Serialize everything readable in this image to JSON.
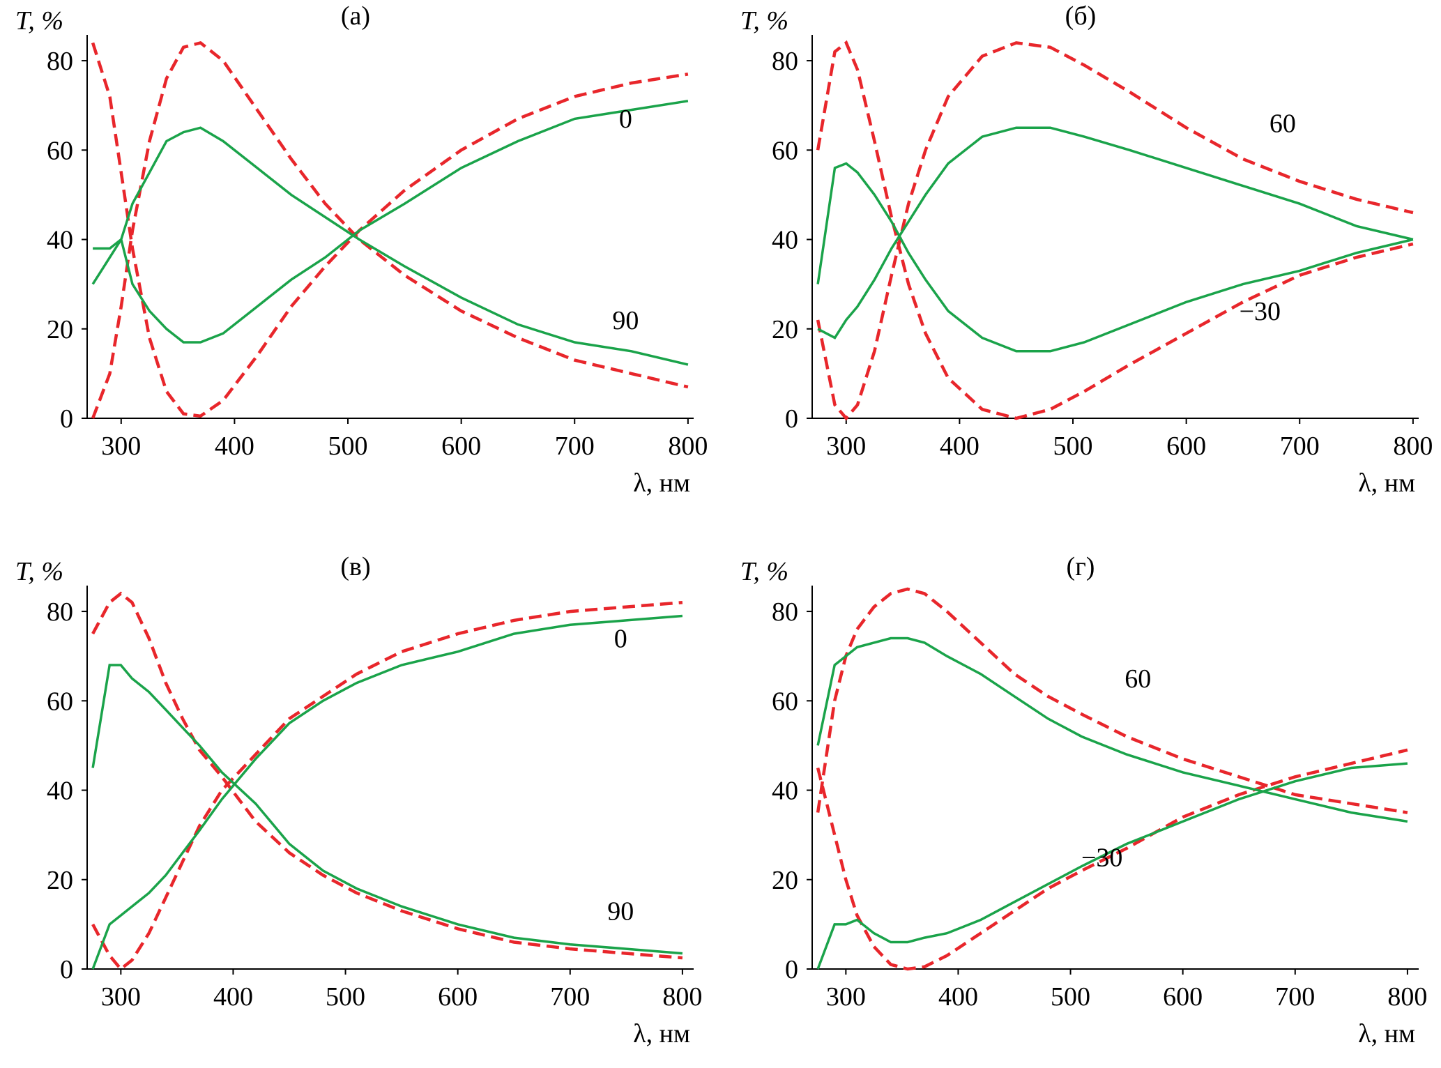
{
  "chart_data": [
    {
      "type": "line",
      "title": "(а)",
      "ylabel": "T, %",
      "xlabel": "λ, нм",
      "xlim": [
        270,
        805
      ],
      "ylim": [
        0,
        85
      ],
      "xticks": [
        300,
        400,
        500,
        600,
        700,
        800
      ],
      "yticks": [
        0,
        20,
        40,
        60,
        80
      ],
      "x": [
        275,
        290,
        300,
        310,
        325,
        340,
        355,
        370,
        390,
        420,
        450,
        480,
        510,
        550,
        600,
        650,
        700,
        750,
        800
      ],
      "series": [
        {
          "color": "#e8262b",
          "dash": true,
          "values": [
            84,
            72,
            55,
            38,
            18,
            6,
            1,
            0.5,
            4,
            14,
            25,
            34,
            42,
            51,
            60,
            67,
            72,
            75,
            77
          ]
        },
        {
          "color": "#e8262b",
          "dash": true,
          "values": [
            0,
            10,
            25,
            42,
            62,
            76,
            83,
            84,
            80,
            69,
            58,
            48,
            40,
            32,
            24,
            18,
            13,
            10,
            7
          ]
        },
        {
          "color": "#1aa34a",
          "values": [
            30,
            36,
            40,
            30,
            24,
            20,
            17,
            17,
            19,
            25,
            31,
            36,
            42,
            48,
            56,
            62,
            67,
            69,
            71
          ]
        },
        {
          "color": "#1aa34a",
          "values": [
            38,
            38,
            40,
            48,
            55,
            62,
            64,
            65,
            62,
            56,
            50,
            45,
            40,
            34,
            27,
            21,
            17,
            15,
            12
          ]
        }
      ],
      "annotations": [
        {
          "text": "0",
          "x": 745,
          "y": 65
        },
        {
          "text": "90",
          "x": 745,
          "y": 20
        }
      ]
    },
    {
      "type": "line",
      "title": "(б)",
      "ylabel": "T, %",
      "xlabel": "λ, нм",
      "xlim": [
        270,
        805
      ],
      "ylim": [
        0,
        85
      ],
      "xticks": [
        300,
        400,
        500,
        600,
        700,
        800
      ],
      "yticks": [
        0,
        20,
        40,
        60,
        80
      ],
      "x": [
        275,
        290,
        300,
        310,
        325,
        340,
        355,
        370,
        390,
        420,
        450,
        480,
        510,
        550,
        600,
        650,
        700,
        750,
        800
      ],
      "series": [
        {
          "color": "#e8262b",
          "dash": true,
          "values": [
            60,
            82,
            84,
            78,
            62,
            45,
            30,
            19,
            9,
            2,
            0,
            2,
            6,
            12,
            19,
            26,
            32,
            36,
            39
          ]
        },
        {
          "color": "#e8262b",
          "dash": true,
          "values": [
            22,
            3,
            0,
            3,
            15,
            32,
            48,
            60,
            72,
            81,
            84,
            83,
            79,
            73,
            65,
            58,
            53,
            49,
            46
          ]
        },
        {
          "color": "#1aa34a",
          "values": [
            30,
            56,
            57,
            55,
            50,
            44,
            37,
            31,
            24,
            18,
            15,
            15,
            17,
            21,
            26,
            30,
            33,
            37,
            40
          ]
        },
        {
          "color": "#1aa34a",
          "values": [
            20,
            18,
            22,
            25,
            31,
            38,
            44,
            50,
            57,
            63,
            65,
            65,
            63,
            60,
            56,
            52,
            48,
            43,
            40
          ]
        }
      ],
      "annotations": [
        {
          "text": "60",
          "x": 685,
          "y": 64
        },
        {
          "text": "−30",
          "x": 665,
          "y": 22
        }
      ]
    },
    {
      "type": "line",
      "title": "(в)",
      "ylabel": "T, %",
      "xlabel": "λ, нм",
      "xlim": [
        270,
        810
      ],
      "ylim": [
        0,
        85
      ],
      "xticks": [
        300,
        400,
        500,
        600,
        700,
        800
      ],
      "yticks": [
        0,
        20,
        40,
        60,
        80
      ],
      "x": [
        275,
        290,
        300,
        310,
        325,
        340,
        355,
        370,
        390,
        420,
        450,
        480,
        510,
        550,
        600,
        650,
        700,
        750,
        800
      ],
      "series": [
        {
          "color": "#e8262b",
          "dash": true,
          "values": [
            75,
            82,
            84,
            82,
            74,
            64,
            56,
            49,
            43,
            33,
            26,
            21,
            17,
            13,
            9,
            6,
            4.5,
            3.5,
            2.5
          ]
        },
        {
          "color": "#e8262b",
          "dash": true,
          "values": [
            10,
            3,
            0,
            2,
            8,
            16,
            24,
            32,
            40,
            48,
            56,
            61,
            66,
            71,
            75,
            78,
            80,
            81,
            82
          ]
        },
        {
          "color": "#1aa34a",
          "values": [
            45,
            68,
            68,
            65,
            62,
            58,
            54,
            50,
            44,
            37,
            28,
            22,
            18,
            14,
            10,
            7,
            5.5,
            4.5,
            3.5
          ]
        },
        {
          "color": "#1aa34a",
          "values": [
            0,
            10,
            12,
            14,
            17,
            21,
            26,
            31,
            38,
            47,
            55,
            60,
            64,
            68,
            71,
            75,
            77,
            78,
            79
          ]
        }
      ],
      "annotations": [
        {
          "text": "0",
          "x": 745,
          "y": 72
        },
        {
          "text": "90",
          "x": 745,
          "y": 11
        }
      ]
    },
    {
      "type": "line",
      "title": "(г)",
      "ylabel": "T, %",
      "xlabel": "λ, нм",
      "xlim": [
        270,
        810
      ],
      "ylim": [
        0,
        85
      ],
      "xticks": [
        300,
        400,
        500,
        600,
        700,
        800
      ],
      "yticks": [
        0,
        20,
        40,
        60,
        80
      ],
      "x": [
        275,
        290,
        300,
        310,
        325,
        340,
        355,
        370,
        390,
        420,
        450,
        480,
        510,
        550,
        600,
        650,
        700,
        750,
        800
      ],
      "series": [
        {
          "color": "#e8262b",
          "dash": true,
          "values": [
            35,
            60,
            70,
            76,
            81,
            84,
            85,
            84,
            80,
            73,
            66,
            61,
            57,
            52,
            47,
            43,
            39,
            37,
            35
          ]
        },
        {
          "color": "#e8262b",
          "dash": true,
          "values": [
            45,
            30,
            20,
            12,
            5,
            1,
            0,
            0.5,
            3,
            8,
            13,
            18,
            22,
            27,
            34,
            39,
            43,
            46,
            49
          ]
        },
        {
          "color": "#1aa34a",
          "values": [
            50,
            68,
            70,
            72,
            73,
            74,
            74,
            73,
            70,
            66,
            61,
            56,
            52,
            48,
            44,
            41,
            38,
            35,
            33
          ]
        },
        {
          "color": "#1aa34a",
          "values": [
            0,
            10,
            10,
            11,
            8,
            6,
            6,
            7,
            8,
            11,
            15,
            19,
            23,
            28,
            33,
            38,
            42,
            45,
            46
          ]
        }
      ],
      "annotations": [
        {
          "text": "60",
          "x": 560,
          "y": 63
        },
        {
          "text": "−30",
          "x": 528,
          "y": 23
        }
      ]
    }
  ]
}
